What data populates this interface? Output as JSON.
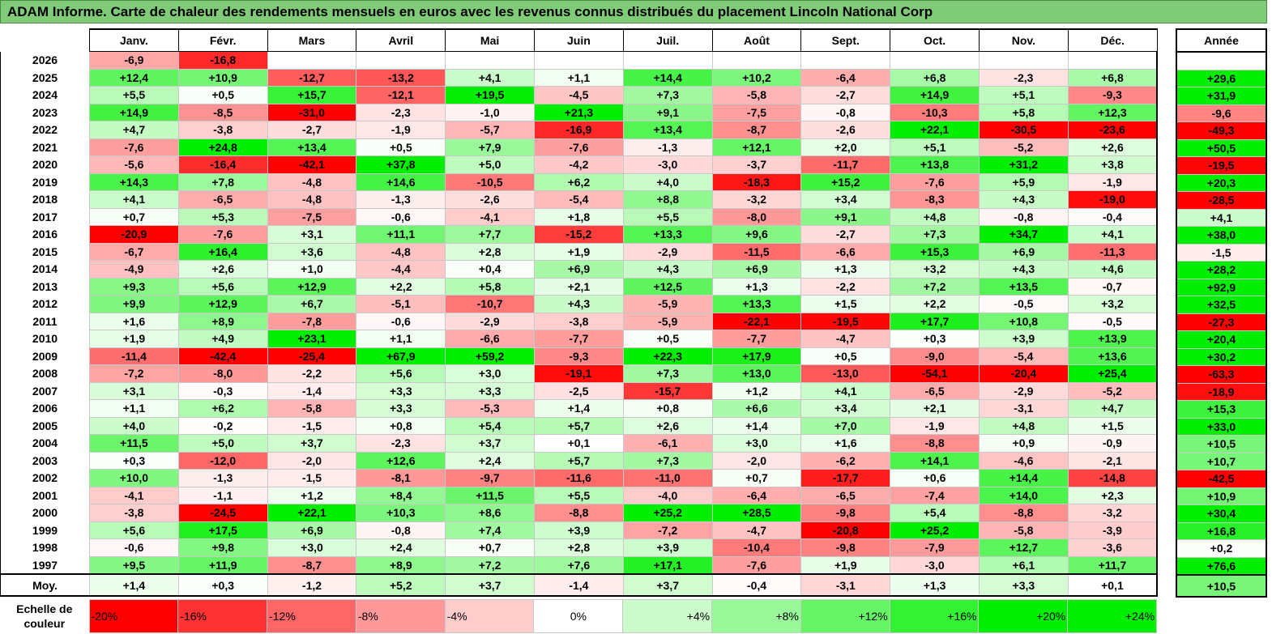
{
  "title": "ADAM Informe. Carte de chaleur des rendements mensuels en euros avec les revenus connus distribués du placement Lincoln National Corp",
  "months": [
    "Janv.",
    "Févr.",
    "Mars",
    "Avril",
    "Mai",
    "Juin",
    "Juil.",
    "Août",
    "Sept.",
    "Oct.",
    "Nov.",
    "Déc."
  ],
  "annual_header": "Année",
  "avg_label": "Moy.",
  "scale_label": "Echelle de couleur",
  "colors": {
    "negative_max": "#ff0000",
    "neutral": "#ffffff",
    "positive_max": "#00ee00",
    "title_bg": "#7fcb78"
  },
  "chart_data": {
    "type": "heatmap",
    "title": "ADAM Informe. Carte de chaleur des rendements mensuels en euros avec les revenus connus distribués du placement Lincoln National Corp",
    "columns": [
      "Janv.",
      "Févr.",
      "Mars",
      "Avril",
      "Mai",
      "Juin",
      "Juil.",
      "Août",
      "Sept.",
      "Oct.",
      "Nov.",
      "Déc.",
      "Année"
    ],
    "rows": [
      {
        "year": "2026",
        "values": [
          "-6,9",
          "-16,8",
          "",
          "",
          "",
          "",
          "",
          "",
          "",
          "",
          "",
          "",
          ""
        ]
      },
      {
        "year": "2025",
        "values": [
          "+12,4",
          "+10,9",
          "-12,7",
          "-13,2",
          "+4,1",
          "+1,1",
          "+14,4",
          "+10,2",
          "-6,4",
          "+6,8",
          "-2,3",
          "+6,8",
          "+29,6"
        ]
      },
      {
        "year": "2024",
        "values": [
          "+5,5",
          "+0,5",
          "+15,7",
          "-12,1",
          "+19,5",
          "-4,5",
          "+7,3",
          "-5,8",
          "-2,7",
          "+14,9",
          "+5,1",
          "-9,3",
          "+31,9"
        ]
      },
      {
        "year": "2023",
        "values": [
          "+14,9",
          "-8,5",
          "-31,0",
          "-2,3",
          "-1,0",
          "+21,3",
          "+9,1",
          "-7,5",
          "-0,8",
          "-10,3",
          "+5,8",
          "+12,3",
          "-9,6"
        ]
      },
      {
        "year": "2022",
        "values": [
          "+4,7",
          "-3,8",
          "-2,7",
          "-1,9",
          "-5,7",
          "-16,9",
          "+13,4",
          "-8,7",
          "-2,6",
          "+22,1",
          "-30,5",
          "-23,6",
          "-49,3"
        ]
      },
      {
        "year": "2021",
        "values": [
          "-7,6",
          "+24,8",
          "+13,4",
          "+0,5",
          "+7,9",
          "-7,6",
          "-1,3",
          "+12,1",
          "+2,0",
          "+5,1",
          "-5,2",
          "+2,6",
          "+50,5"
        ]
      },
      {
        "year": "2020",
        "values": [
          "-5,6",
          "-16,4",
          "-42,1",
          "+37,8",
          "+5,0",
          "-4,2",
          "-3,0",
          "-3,7",
          "-11,7",
          "+13,8",
          "+31,2",
          "+3,8",
          "-19,5"
        ]
      },
      {
        "year": "2019",
        "values": [
          "+14,3",
          "+7,8",
          "-4,8",
          "+14,6",
          "-10,5",
          "+6,2",
          "+4,0",
          "-18,3",
          "+15,2",
          "-7,6",
          "+5,9",
          "-1,9",
          "+20,3"
        ]
      },
      {
        "year": "2018",
        "values": [
          "+4,1",
          "-6,5",
          "-4,8",
          "-1,3",
          "-2,6",
          "-5,4",
          "+8,8",
          "-3,2",
          "+3,4",
          "-8,3",
          "+4,3",
          "-19,0",
          "-28,5"
        ]
      },
      {
        "year": "2017",
        "values": [
          "+0,7",
          "+5,3",
          "-7,5",
          "-0,6",
          "-4,1",
          "+1,8",
          "+5,5",
          "-8,0",
          "+9,1",
          "+4,8",
          "-0,8",
          "-0,4",
          "+4,1"
        ]
      },
      {
        "year": "2016",
        "values": [
          "-20,9",
          "-7,6",
          "+3,1",
          "+11,1",
          "+7,7",
          "-15,2",
          "+13,3",
          "+9,6",
          "-2,7",
          "+7,3",
          "+34,7",
          "+4,1",
          "+38,0"
        ]
      },
      {
        "year": "2015",
        "values": [
          "-6,7",
          "+16,4",
          "+3,6",
          "-4,8",
          "+2,8",
          "+1,9",
          "-2,9",
          "-11,5",
          "-6,6",
          "+15,3",
          "+6,9",
          "-11,3",
          "-1,5"
        ]
      },
      {
        "year": "2014",
        "values": [
          "-4,9",
          "+2,6",
          "+1,0",
          "-4,4",
          "+0,4",
          "+6,9",
          "+4,3",
          "+6,9",
          "+1,3",
          "+3,2",
          "+4,3",
          "+4,6",
          "+28,2"
        ]
      },
      {
        "year": "2013",
        "values": [
          "+9,3",
          "+5,6",
          "+12,9",
          "+2,2",
          "+5,8",
          "+2,1",
          "+12,5",
          "+1,3",
          "-2,2",
          "+7,2",
          "+13,5",
          "-0,7",
          "+92,9"
        ]
      },
      {
        "year": "2012",
        "values": [
          "+9,9",
          "+12,9",
          "+6,7",
          "-5,1",
          "-10,7",
          "+4,3",
          "-5,9",
          "+13,3",
          "+1,5",
          "+2,2",
          "-0,5",
          "+3,2",
          "+32,5"
        ]
      },
      {
        "year": "2011",
        "values": [
          "+1,6",
          "+8,9",
          "-7,8",
          "-0,6",
          "-2,9",
          "-3,8",
          "-5,9",
          "-22,1",
          "-19,5",
          "+17,7",
          "+10,8",
          "-0,5",
          "-27,3"
        ]
      },
      {
        "year": "2010",
        "values": [
          "+1,9",
          "+4,9",
          "+23,1",
          "+1,1",
          "-6,6",
          "-7,7",
          "+0,5",
          "-7,7",
          "-4,7",
          "+0,3",
          "+3,9",
          "+13,9",
          "+20,4"
        ]
      },
      {
        "year": "2009",
        "values": [
          "-11,4",
          "-42,4",
          "-25,4",
          "+67,9",
          "+59,2",
          "-9,3",
          "+22,3",
          "+17,9",
          "+0,5",
          "-9,0",
          "-5,4",
          "+13,6",
          "+30,2"
        ]
      },
      {
        "year": "2008",
        "values": [
          "-7,2",
          "-8,0",
          "-2,2",
          "+5,6",
          "+3,0",
          "-19,1",
          "+7,3",
          "+13,0",
          "-13,0",
          "-54,1",
          "-20,4",
          "+25,4",
          "-63,3"
        ]
      },
      {
        "year": "2007",
        "values": [
          "+3,1",
          "-0,3",
          "-1,4",
          "+3,3",
          "+3,3",
          "-2,5",
          "-15,7",
          "+1,2",
          "+4,1",
          "-6,5",
          "-2,9",
          "-5,2",
          "-18,9"
        ]
      },
      {
        "year": "2006",
        "values": [
          "+1,1",
          "+6,2",
          "-5,8",
          "+3,3",
          "-5,3",
          "+1,4",
          "+0,8",
          "+6,6",
          "+3,4",
          "+2,1",
          "-3,1",
          "+4,7",
          "+15,3"
        ]
      },
      {
        "year": "2005",
        "values": [
          "+4,0",
          "-0,2",
          "-1,5",
          "+0,8",
          "+5,4",
          "+5,7",
          "+2,6",
          "+1,4",
          "+7,0",
          "-1,9",
          "+4,8",
          "+1,5",
          "+33,0"
        ]
      },
      {
        "year": "2004",
        "values": [
          "+11,5",
          "+5,0",
          "+3,7",
          "-2,3",
          "+3,7",
          "+0,1",
          "-6,1",
          "+3,0",
          "+1,6",
          "-8,8",
          "+0,9",
          "-0,9",
          "+10,5"
        ]
      },
      {
        "year": "2003",
        "values": [
          "+0,3",
          "-12,0",
          "-2,0",
          "+12,6",
          "+2,4",
          "+5,7",
          "+7,3",
          "-2,0",
          "-6,2",
          "+14,1",
          "-4,6",
          "-2,1",
          "+10,7"
        ]
      },
      {
        "year": "2002",
        "values": [
          "+10,0",
          "-1,3",
          "-1,5",
          "-8,1",
          "-9,7",
          "-11,6",
          "-11,0",
          "+0,7",
          "-17,7",
          "+0,6",
          "+14,4",
          "-14,8",
          "-42,5"
        ]
      },
      {
        "year": "2001",
        "values": [
          "-4,1",
          "-1,1",
          "+1,2",
          "+8,4",
          "+11,5",
          "+5,5",
          "-4,0",
          "-6,4",
          "-6,5",
          "-7,4",
          "+14,0",
          "+2,3",
          "+10,9"
        ]
      },
      {
        "year": "2000",
        "values": [
          "-3,8",
          "-24,5",
          "+22,1",
          "+10,3",
          "+8,6",
          "-8,8",
          "+25,2",
          "+28,5",
          "-9,8",
          "+5,4",
          "-8,8",
          "-3,2",
          "+30,4"
        ]
      },
      {
        "year": "1999",
        "values": [
          "+5,6",
          "+17,5",
          "+6,9",
          "-0,8",
          "+7,4",
          "+3,9",
          "-7,2",
          "-4,7",
          "-20,8",
          "+25,2",
          "-5,8",
          "-3,9",
          "+16,8"
        ]
      },
      {
        "year": "1998",
        "values": [
          "-0,6",
          "+9,8",
          "+3,0",
          "+2,4",
          "+0,7",
          "+2,8",
          "+3,9",
          "-10,4",
          "-9,8",
          "-7,9",
          "+12,7",
          "-3,6",
          "+0,2"
        ]
      },
      {
        "year": "1997",
        "values": [
          "+9,5",
          "+11,9",
          "-8,7",
          "+8,9",
          "+7,2",
          "+7,6",
          "+17,1",
          "-7,6",
          "+1,9",
          "-3,0",
          "+6,1",
          "+11,7",
          "+76,6"
        ]
      }
    ],
    "average": [
      "+1,4",
      "+0,3",
      "-1,2",
      "+5,2",
      "+3,7",
      "-1,4",
      "+3,7",
      "-0,4",
      "-3,1",
      "+1,3",
      "+3,3",
      "+0,1",
      "+10,5"
    ],
    "color_scale": [
      "-20%",
      "-16%",
      "-12%",
      "-8%",
      "-4%",
      "0%",
      "+4%",
      "+8%",
      "+12%",
      "+16%",
      "+20%",
      "+24%"
    ]
  }
}
